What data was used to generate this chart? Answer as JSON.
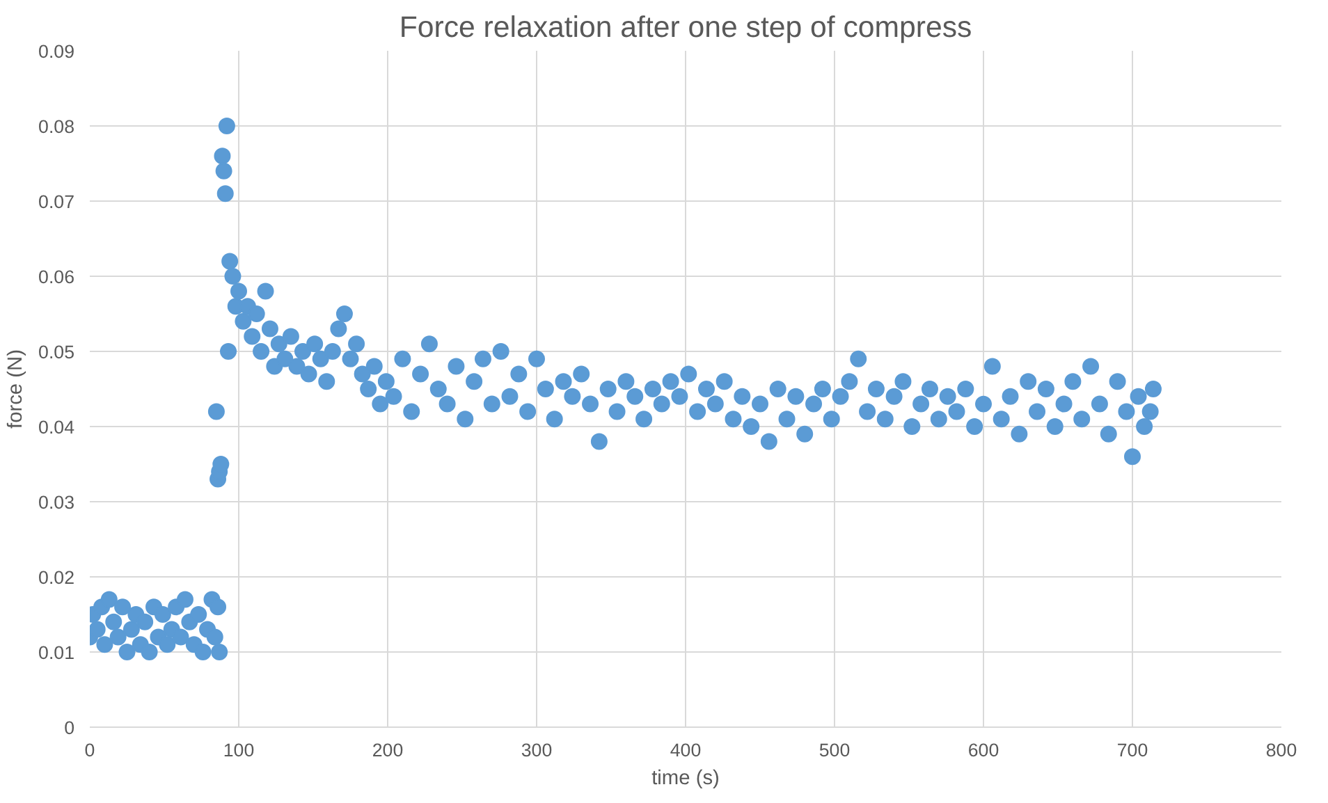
{
  "chart_data": {
    "type": "scatter",
    "title": "Force relaxation after one step of compress",
    "xlabel": "time (s)",
    "ylabel": "force (N)",
    "xlim": [
      0,
      800
    ],
    "xticks": [
      0,
      100,
      200,
      300,
      400,
      500,
      600,
      700,
      800
    ],
    "ylim": [
      0,
      0.09
    ],
    "yticks": [
      0,
      0.01,
      0.02,
      0.03,
      0.04,
      0.05,
      0.06,
      0.07,
      0.08,
      0.09
    ],
    "grid": true,
    "marker": "circle",
    "series": [
      {
        "color": "#5b9bd5",
        "x": [
          0,
          2,
          5,
          8,
          10,
          13,
          16,
          19,
          22,
          25,
          28,
          31,
          34,
          37,
          40,
          43,
          46,
          49,
          52,
          55,
          58,
          61,
          64,
          67,
          70,
          73,
          76,
          79,
          82,
          84,
          86,
          87,
          85,
          86,
          87,
          88,
          89,
          90,
          91,
          92,
          93,
          94,
          96,
          98,
          100,
          103,
          106,
          109,
          112,
          115,
          118,
          121,
          124,
          127,
          131,
          135,
          139,
          143,
          147,
          151,
          155,
          159,
          163,
          167,
          171,
          175,
          179,
          183,
          187,
          191,
          195,
          199,
          204,
          210,
          216,
          222,
          228,
          234,
          240,
          246,
          252,
          258,
          264,
          270,
          276,
          282,
          288,
          294,
          300,
          306,
          312,
          318,
          324,
          330,
          336,
          342,
          348,
          354,
          360,
          366,
          372,
          378,
          384,
          390,
          396,
          402,
          408,
          414,
          420,
          426,
          432,
          438,
          444,
          450,
          456,
          462,
          468,
          474,
          480,
          486,
          492,
          498,
          504,
          510,
          516,
          522,
          528,
          534,
          540,
          546,
          552,
          558,
          564,
          570,
          576,
          582,
          588,
          594,
          600,
          606,
          612,
          618,
          624,
          630,
          636,
          642,
          648,
          654,
          660,
          666,
          672,
          678,
          684,
          690,
          696,
          700,
          704,
          708,
          712,
          714
        ],
        "values": [
          0.012,
          0.015,
          0.013,
          0.016,
          0.011,
          0.017,
          0.014,
          0.012,
          0.016,
          0.01,
          0.013,
          0.015,
          0.011,
          0.014,
          0.01,
          0.016,
          0.012,
          0.015,
          0.011,
          0.013,
          0.016,
          0.012,
          0.017,
          0.014,
          0.011,
          0.015,
          0.01,
          0.013,
          0.017,
          0.012,
          0.016,
          0.01,
          0.042,
          0.033,
          0.034,
          0.035,
          0.076,
          0.074,
          0.071,
          0.08,
          0.05,
          0.062,
          0.06,
          0.056,
          0.058,
          0.054,
          0.056,
          0.052,
          0.055,
          0.05,
          0.058,
          0.053,
          0.048,
          0.051,
          0.049,
          0.052,
          0.048,
          0.05,
          0.047,
          0.051,
          0.049,
          0.046,
          0.05,
          0.053,
          0.055,
          0.049,
          0.051,
          0.047,
          0.045,
          0.048,
          0.043,
          0.046,
          0.044,
          0.049,
          0.042,
          0.047,
          0.051,
          0.045,
          0.043,
          0.048,
          0.041,
          0.046,
          0.049,
          0.043,
          0.05,
          0.044,
          0.047,
          0.042,
          0.049,
          0.045,
          0.041,
          0.046,
          0.044,
          0.047,
          0.043,
          0.038,
          0.045,
          0.042,
          0.046,
          0.044,
          0.041,
          0.045,
          0.043,
          0.046,
          0.044,
          0.047,
          0.042,
          0.045,
          0.043,
          0.046,
          0.041,
          0.044,
          0.04,
          0.043,
          0.038,
          0.045,
          0.041,
          0.044,
          0.039,
          0.043,
          0.045,
          0.041,
          0.044,
          0.046,
          0.049,
          0.042,
          0.045,
          0.041,
          0.044,
          0.046,
          0.04,
          0.043,
          0.045,
          0.041,
          0.044,
          0.042,
          0.045,
          0.04,
          0.043,
          0.048,
          0.041,
          0.044,
          0.039,
          0.046,
          0.042,
          0.045,
          0.04,
          0.043,
          0.046,
          0.041,
          0.048,
          0.043,
          0.039,
          0.046,
          0.042,
          0.036,
          0.044,
          0.04,
          0.042,
          0.045
        ]
      }
    ]
  }
}
